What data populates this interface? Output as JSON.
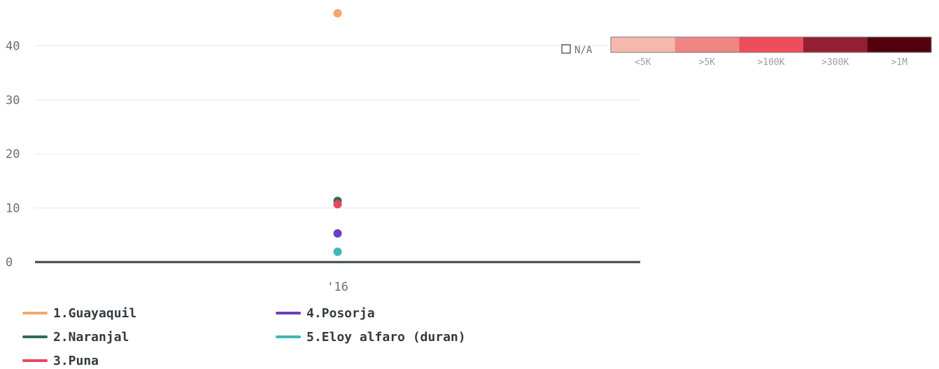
{
  "chart_data": {
    "type": "scatter",
    "x_categories": [
      "'16"
    ],
    "yticks": [
      0,
      10,
      20,
      30,
      40
    ],
    "ylim": [
      0,
      46
    ],
    "series": [
      {
        "name": "1.Guayaquil",
        "color": "#f9a66c",
        "points": [
          {
            "x": "'16",
            "y": 46
          }
        ]
      },
      {
        "name": "2.Naranjal",
        "color": "#2e6b57",
        "points": [
          {
            "x": "'16",
            "y": 11.3
          }
        ]
      },
      {
        "name": "3.Puna",
        "color": "#e8475c",
        "points": [
          {
            "x": "'16",
            "y": 10.7
          }
        ]
      },
      {
        "name": "4.Posorja",
        "color": "#6a3fbf",
        "points": [
          {
            "x": "'16",
            "y": 5.3
          }
        ]
      },
      {
        "name": "5.Eloy alfaro (duran)",
        "color": "#3fb8b8",
        "points": [
          {
            "x": "'16",
            "y": 1.9
          }
        ]
      }
    ],
    "color_scale": {
      "na_label": "N/A",
      "bins": [
        {
          "label": "<5K",
          "color": "#f4b8ad"
        },
        {
          "label": ">5K",
          "color": "#f08684"
        },
        {
          "label": ">100K",
          "color": "#ee4d5a"
        },
        {
          "label": ">300K",
          "color": "#951f32"
        },
        {
          "label": ">1M",
          "color": "#55000f"
        }
      ]
    }
  }
}
